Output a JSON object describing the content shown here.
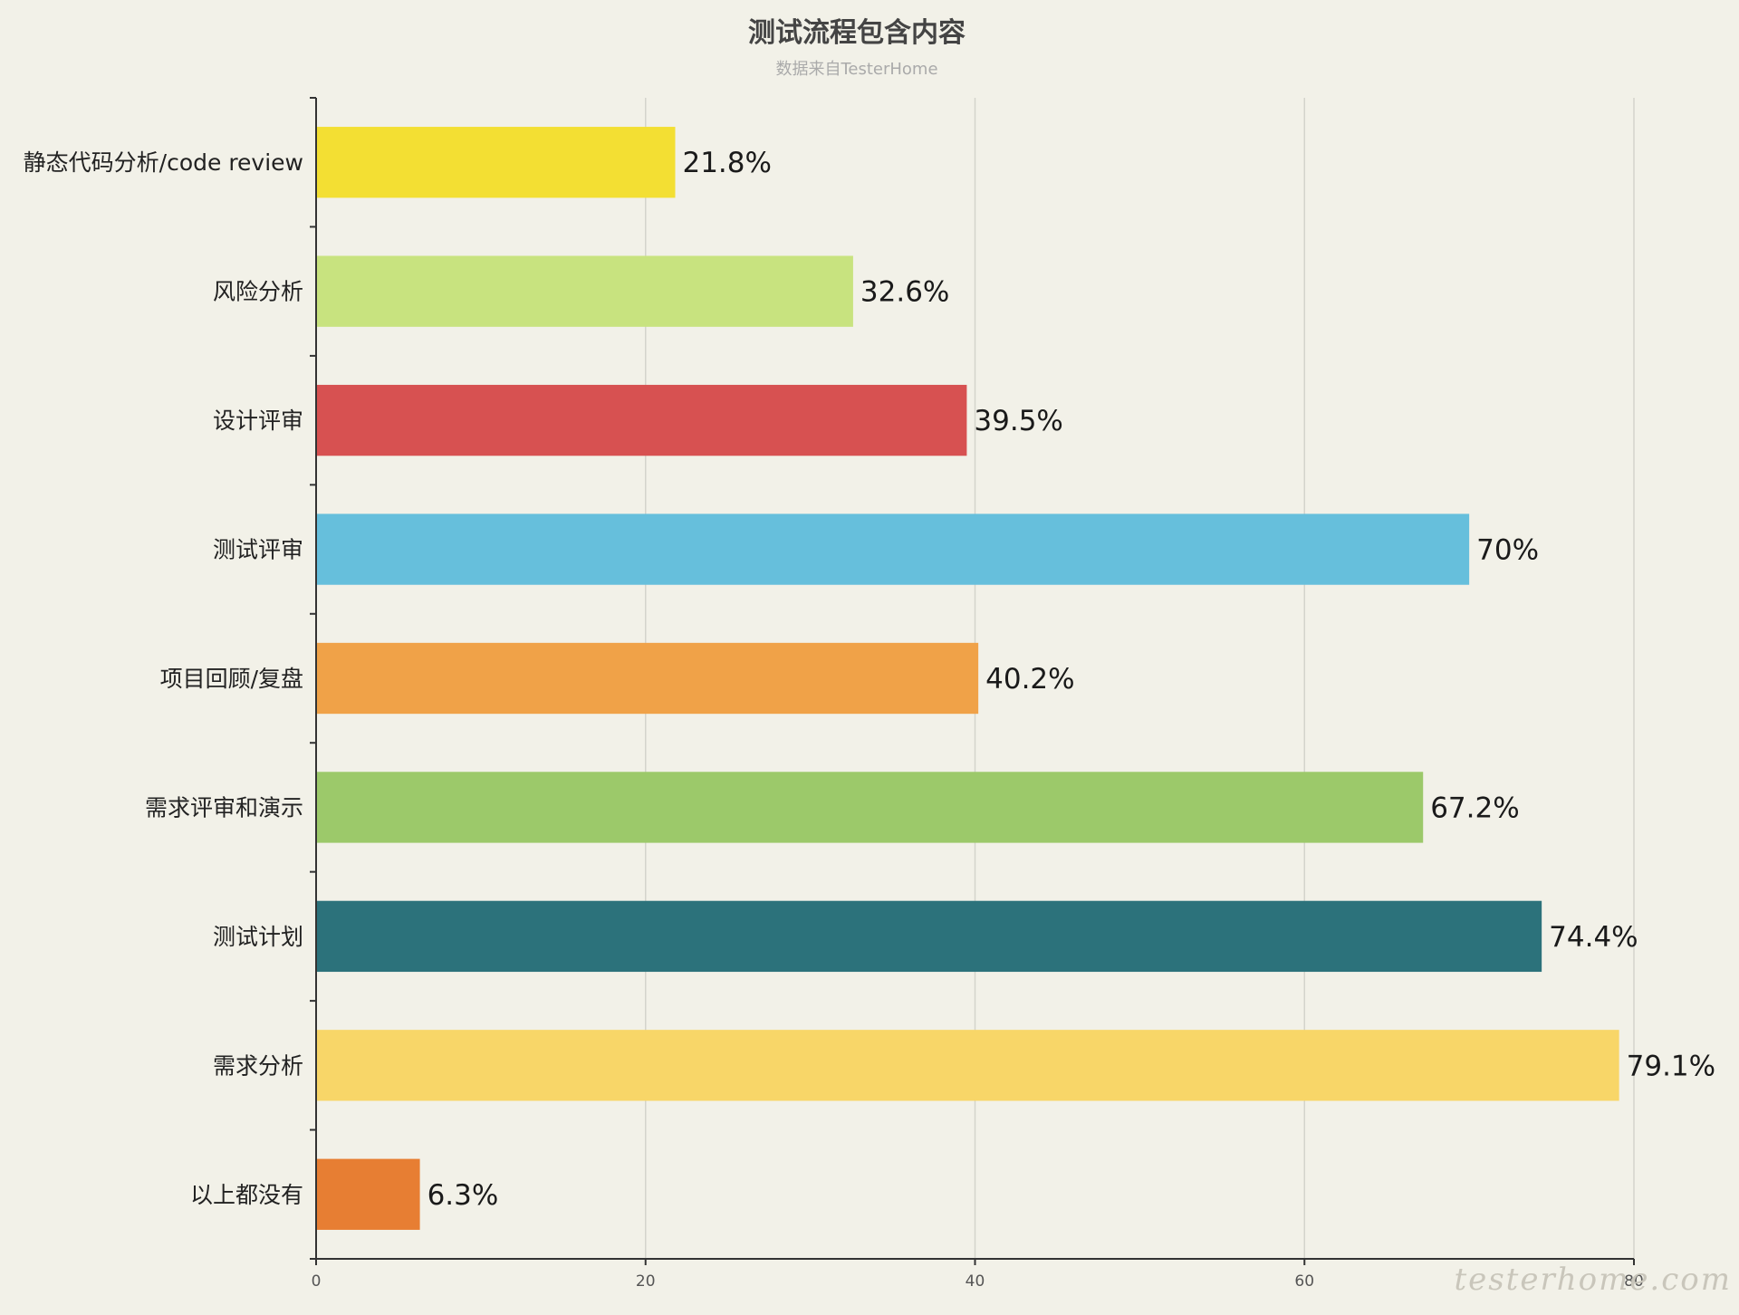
{
  "chart_data": {
    "type": "bar",
    "orientation": "horizontal",
    "title": "测试流程包含内容",
    "subtitle": "数据来自TesterHome",
    "categories": [
      "静态代码分析/code review",
      "风险分析",
      "设计评审",
      "测试评审",
      "项目回顾/复盘",
      "需求评审和演示",
      "测试计划",
      "需求分析",
      "以上都没有"
    ],
    "values": [
      21.8,
      32.6,
      39.5,
      70,
      40.2,
      67.2,
      74.4,
      79.1,
      6.3
    ],
    "value_labels": [
      "21.8%",
      "32.6%",
      "39.5%",
      "70%",
      "40.2%",
      "67.2%",
      "74.4%",
      "79.1%",
      "6.3%"
    ],
    "colors": [
      "#f3df33",
      "#c8e37f",
      "#d75151",
      "#66bfdc",
      "#f0a248",
      "#9cc96a",
      "#2c727b",
      "#f8d668",
      "#e77e33"
    ],
    "xticks": [
      "0",
      "20",
      "40",
      "60",
      "80"
    ],
    "xlim": [
      0,
      80
    ],
    "grid": true,
    "watermark": "testerhome.com"
  }
}
